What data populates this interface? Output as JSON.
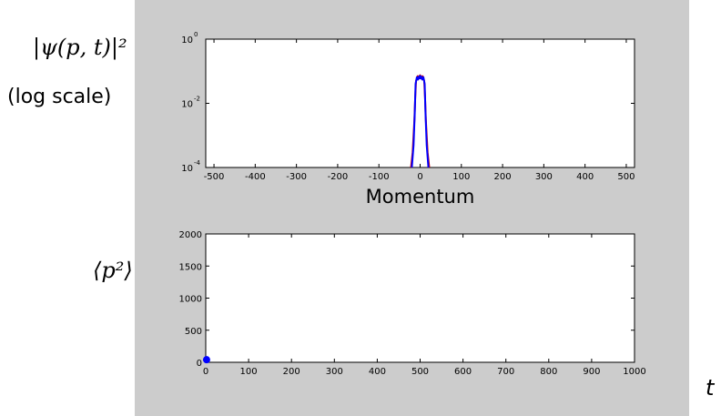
{
  "labels": {
    "psi_squared": "|ψ(p, t)|²",
    "log_scale": "(log scale)",
    "p_squared_mean": "⟨p²⟩",
    "t": "t"
  },
  "colors": {
    "figure_bg": "#cccccc",
    "axes_bg": "#ffffff",
    "series_blue": "#0000ff",
    "series_red": "#cc0000"
  },
  "chart_data": [
    {
      "type": "line",
      "xlabel": "Momentum",
      "ylabel": "",
      "yscale": "log",
      "xlim": [
        -520,
        520
      ],
      "ylim": [
        0.0001,
        1
      ],
      "x_ticks": [
        -500,
        -400,
        -300,
        -200,
        -100,
        0,
        100,
        200,
        300,
        400,
        500
      ],
      "x_tick_labels": [
        "-500",
        "-400",
        "-300",
        "-200",
        "-100",
        "0",
        "100",
        "200",
        "300",
        "400",
        "500"
      ],
      "y_ticks": [
        1,
        0.01,
        0.0001
      ],
      "y_tick_labels": [
        {
          "base": "10",
          "exp": "0"
        },
        {
          "base": "10",
          "exp": "-2"
        },
        {
          "base": "10",
          "exp": "-4"
        }
      ],
      "grid": false,
      "series": [
        {
          "color": "#cc0000",
          "x": [
            -22,
            -18,
            -14,
            -12,
            -10,
            -6,
            -2,
            0,
            2,
            6,
            10,
            12,
            14,
            18,
            22
          ],
          "y": [
            0.0001,
            0.0003,
            0.003,
            0.015,
            0.05,
            0.07,
            0.06,
            0.075,
            0.06,
            0.07,
            0.05,
            0.015,
            0.003,
            0.0003,
            0.0001
          ]
        },
        {
          "color": "#0000ff",
          "x": [
            -20,
            -16,
            -13,
            -11,
            -8,
            -5,
            -2,
            0,
            2,
            5,
            8,
            11,
            13,
            16,
            20
          ],
          "y": [
            0.0001,
            0.0005,
            0.005,
            0.04,
            0.065,
            0.055,
            0.07,
            0.06,
            0.07,
            0.055,
            0.065,
            0.04,
            0.005,
            0.0005,
            0.0001
          ]
        }
      ]
    },
    {
      "type": "scatter",
      "xlabel": "",
      "ylabel": "",
      "xlim": [
        0,
        1000
      ],
      "ylim": [
        0,
        2000
      ],
      "x_ticks": [
        0,
        100,
        200,
        300,
        400,
        500,
        600,
        700,
        800,
        900,
        1000
      ],
      "x_tick_labels": [
        "0",
        "100",
        "200",
        "300",
        "400",
        "500",
        "600",
        "700",
        "800",
        "900",
        "1000"
      ],
      "y_ticks": [
        0,
        500,
        1000,
        1500,
        2000
      ],
      "y_tick_labels": [
        "0",
        "500",
        "1000",
        "1500",
        "2000"
      ],
      "grid": false,
      "series": [
        {
          "color": "#0000ff",
          "x": [
            2
          ],
          "y": [
            40
          ]
        }
      ]
    }
  ]
}
